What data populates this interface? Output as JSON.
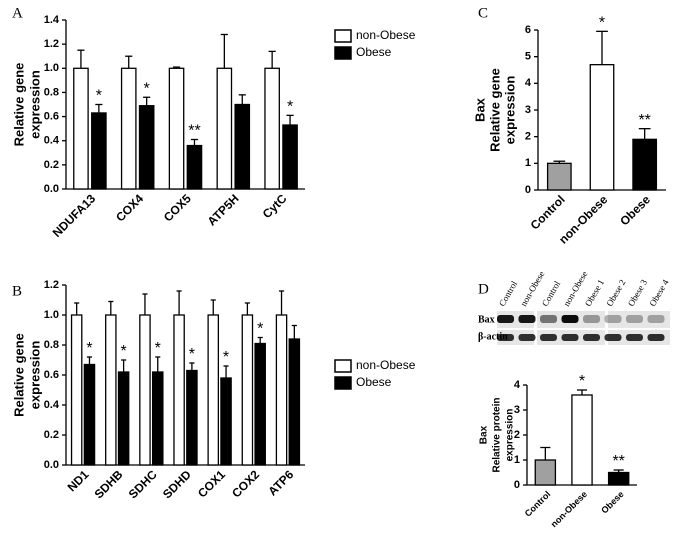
{
  "chart_data": [
    {
      "type": "bar",
      "panel": "A",
      "ylabel": [
        "Relative gene",
        "expression"
      ],
      "categories": [
        "NDUFA13",
        "COX4",
        "COX5",
        "ATP5H",
        "CytC"
      ],
      "series": [
        {
          "name": "non-Obese",
          "color": "#ffffff",
          "values": [
            1.0,
            1.0,
            1.0,
            1.0,
            1.0
          ],
          "errors": [
            0.15,
            0.1,
            0.01,
            0.28,
            0.14
          ]
        },
        {
          "name": "Obese",
          "color": "#000000",
          "values": [
            0.63,
            0.69,
            0.36,
            0.7,
            0.53
          ],
          "errors": [
            0.07,
            0.07,
            0.05,
            0.08,
            0.08
          ],
          "significance": [
            "*",
            "*",
            "**",
            null,
            "*"
          ]
        }
      ],
      "ylim": [
        0,
        1.4
      ],
      "yticks": [
        {
          "value": 0,
          "label": "0.0"
        },
        0.2,
        0.4,
        0.6,
        0.8,
        {
          "value": 1,
          "label": "1.0"
        },
        1.2,
        1.4
      ],
      "legend": "top-right"
    },
    {
      "type": "bar",
      "panel": "B",
      "ylabel": [
        "Relative gene",
        "expression"
      ],
      "categories": [
        "ND1",
        "SDHB",
        "SDHC",
        "SDHD",
        "COX1",
        "COX2",
        "ATP6"
      ],
      "series": [
        {
          "name": "non-Obese",
          "color": "#ffffff",
          "values": [
            1.0,
            1.0,
            1.0,
            1.0,
            1.0,
            1.0,
            1.0
          ],
          "errors": [
            0.08,
            0.09,
            0.14,
            0.16,
            0.1,
            0.08,
            0.16
          ]
        },
        {
          "name": "Obese",
          "color": "#000000",
          "values": [
            0.67,
            0.62,
            0.62,
            0.63,
            0.58,
            0.81,
            0.84
          ],
          "errors": [
            0.05,
            0.08,
            0.1,
            0.05,
            0.08,
            0.04,
            0.09
          ],
          "significance": [
            "*",
            "*",
            "*",
            "*",
            "*",
            "*",
            null
          ]
        }
      ],
      "ylim": [
        0,
        1.2
      ],
      "yticks": [
        {
          "value": 0,
          "label": "0.0"
        },
        0.2,
        0.4,
        0.6,
        0.8,
        {
          "value": 1,
          "label": "1.0"
        },
        1.2
      ],
      "legend": "top-right"
    },
    {
      "type": "bar",
      "panel": "C",
      "ylabel": [
        "Bax",
        "Relative gene",
        "expression"
      ],
      "categories": [
        "Control",
        "non-Obese",
        "Obese"
      ],
      "values": [
        1.0,
        4.7,
        1.9
      ],
      "errors": [
        0.08,
        1.25,
        0.4
      ],
      "colors": [
        "#a0a0a0",
        "#ffffff",
        "#000000"
      ],
      "significance": [
        null,
        "*",
        "**"
      ],
      "ylim": [
        0,
        6
      ],
      "yticks": [
        0,
        1,
        2,
        3,
        4,
        5,
        6
      ]
    },
    {
      "type": "bar",
      "panel": "D",
      "ylabel": [
        "Bax",
        "Relative protein",
        "expression"
      ],
      "blot": {
        "lanes": [
          "Control",
          "non-Obese",
          "Control",
          "non-Obese",
          "Obese 1",
          "Obese 2",
          "Obese 3",
          "Obese 4"
        ],
        "rows": [
          "Bax",
          "β-actin"
        ]
      },
      "categories": [
        "Control",
        "non-Obese",
        "Obese"
      ],
      "values": [
        1.0,
        3.6,
        0.5
      ],
      "errors": [
        0.5,
        0.2,
        0.1
      ],
      "colors": [
        "#a0a0a0",
        "#ffffff",
        "#000000"
      ],
      "significance": [
        null,
        "*",
        "**"
      ],
      "ylim": [
        0,
        4
      ],
      "yticks": [
        0,
        1,
        2,
        3,
        4
      ]
    }
  ]
}
